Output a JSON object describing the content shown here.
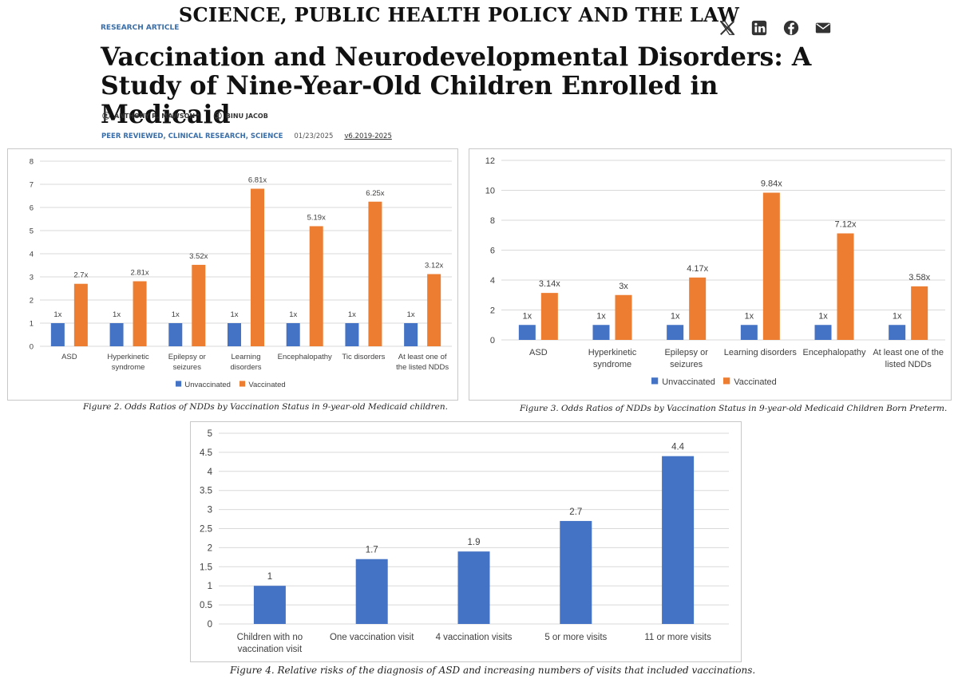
{
  "header": {
    "journal": "SCIENCE, PUBLIC HEALTH POLICY AND THE LAW",
    "kicker": "RESEARCH ARTICLE",
    "title": "Vaccination and Neurodevelopmental Disorders: A Study of Nine-Year-Old Children Enrolled in Medicaid",
    "authors": [
      "ANTHONY R. MAWSON",
      "BINU JACOB"
    ],
    "author_mark": "*",
    "categories": "PEER REVIEWED, CLINICAL RESEARCH, SCIENCE",
    "date": "01/23/2025",
    "version": "v6.2019-2025",
    "social_icons": [
      "x-icon",
      "linkedin-icon",
      "facebook-icon",
      "mail-icon"
    ]
  },
  "colors": {
    "unvaccinated": "#4472c4",
    "vaccinated": "#ed7d31",
    "single": "#4472c4",
    "grid": "#d9d9d9",
    "text": "#404040"
  },
  "captions": {
    "fig2": "Figure 2. Odds Ratios of NDDs by Vaccination Status in 9-year-old Medicaid children.",
    "fig3": "Figure 3. Odds Ratios of NDDs by Vaccination Status in 9-year-old Medicaid Children Born Preterm.",
    "fig4": "Figure 4. Relative risks of the diagnosis of ASD and increasing numbers of visits that included vaccinations."
  },
  "chart_data": [
    {
      "type": "bar",
      "categories": [
        [
          "ASD"
        ],
        [
          "Hyperkinetic",
          "syndrome"
        ],
        [
          "Epilepsy or",
          "seizures"
        ],
        [
          "Learning",
          "disorders"
        ],
        [
          "Encephalopathy"
        ],
        [
          "Tic disorders"
        ],
        [
          "At least one of",
          "the listed NDDs"
        ]
      ],
      "series": [
        {
          "name": "Unvaccinated",
          "values": [
            1,
            1,
            1,
            1,
            1,
            1,
            1
          ],
          "labels": [
            "1x",
            "1x",
            "1x",
            "1x",
            "1x",
            "1x",
            "1x"
          ]
        },
        {
          "name": "Vaccinated",
          "values": [
            2.7,
            2.81,
            3.52,
            6.81,
            5.19,
            6.25,
            3.12
          ],
          "labels": [
            "2.7x",
            "2.81x",
            "3.52x",
            "6.81x",
            "5.19x",
            "6.25x",
            "3.12x"
          ]
        }
      ],
      "ylim": [
        0,
        8
      ],
      "yticks": [
        "0",
        "1",
        "2",
        "3",
        "4",
        "5",
        "6",
        "7",
        "8"
      ],
      "grid": true,
      "legend": "bottom"
    },
    {
      "type": "bar",
      "categories": [
        [
          "ASD"
        ],
        [
          "Hyperkinetic",
          "syndrome"
        ],
        [
          "Epilepsy or",
          "seizures"
        ],
        [
          "Learning disorders"
        ],
        [
          "Encephalopathy"
        ],
        [
          "At least one of the",
          "listed NDDs"
        ]
      ],
      "series": [
        {
          "name": "Unvaccinated",
          "values": [
            1,
            1,
            1,
            1,
            1,
            1
          ],
          "labels": [
            "1x",
            "1x",
            "1x",
            "1x",
            "1x",
            "1x"
          ]
        },
        {
          "name": "Vaccinated",
          "values": [
            3.14,
            3,
            4.17,
            9.84,
            7.12,
            3.58
          ],
          "labels": [
            "3.14x",
            "3x",
            "4.17x",
            "9.84x",
            "7.12x",
            "3.58x"
          ]
        }
      ],
      "ylim": [
        0,
        12
      ],
      "yticks": [
        "0",
        "2",
        "4",
        "6",
        "8",
        "10",
        "12"
      ],
      "grid": true,
      "legend": "bottom"
    },
    {
      "type": "bar",
      "categories": [
        [
          "Children with no",
          "vaccination visit"
        ],
        [
          "One vaccination visit"
        ],
        [
          "4 vaccination visits"
        ],
        [
          "5 or more visits"
        ],
        [
          "11 or more visits"
        ]
      ],
      "values": [
        1,
        1.7,
        1.9,
        2.7,
        4.4
      ],
      "labels": [
        "1",
        "1.7",
        "1.9",
        "2.7",
        "4.4"
      ],
      "ylim": [
        0,
        5
      ],
      "yticks": [
        "0",
        "0.5",
        "1",
        "1.5",
        "2",
        "2.5",
        "3",
        "3.5",
        "4",
        "4.5",
        "5"
      ],
      "grid": true
    }
  ]
}
